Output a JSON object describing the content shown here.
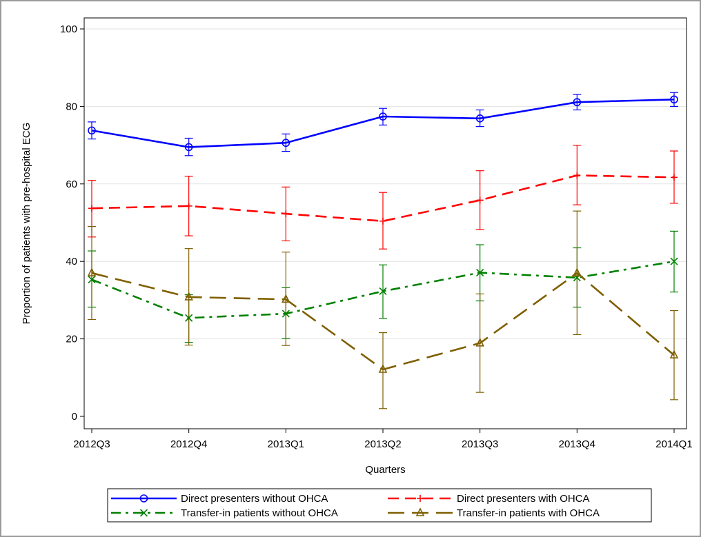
{
  "chart_data": {
    "type": "line",
    "xlabel": "Quarters",
    "ylabel": "Proportion of patients with pre-hospital ECG",
    "categories": [
      "2012Q3",
      "2012Q4",
      "2013Q1",
      "2013Q2",
      "2013Q3",
      "2013Q4",
      "2014Q1"
    ],
    "ylim": [
      0,
      100
    ],
    "yticks": [
      0,
      20,
      40,
      60,
      80,
      100
    ],
    "grid": "horizontal",
    "legend_position": "bottom",
    "series": [
      {
        "name": "Direct presenters without OHCA",
        "color": "#0000ff",
        "marker": "circle",
        "dash": "solid",
        "values": [
          73.8,
          69.5,
          70.6,
          77.4,
          76.9,
          81.1,
          81.8
        ],
        "lower": [
          71.6,
          67.3,
          68.4,
          75.2,
          74.8,
          79.1,
          80.0
        ],
        "upper": [
          76.0,
          71.8,
          72.9,
          79.5,
          79.1,
          83.1,
          83.6
        ]
      },
      {
        "name": "Direct presenters with OHCA",
        "color": "#ff0000",
        "marker": "plus",
        "dash": "dash",
        "values": [
          53.7,
          54.3,
          52.3,
          50.4,
          55.8,
          62.2,
          61.7
        ],
        "lower": [
          46.3,
          46.6,
          45.3,
          43.2,
          48.2,
          54.6,
          55.0
        ],
        "upper": [
          60.9,
          62.0,
          59.2,
          57.8,
          63.4,
          70.0,
          68.5
        ]
      },
      {
        "name": "Transfer-in patients without OHCA",
        "color": "#008000",
        "marker": "x",
        "dash": "dashdot",
        "values": [
          35.3,
          25.4,
          26.5,
          32.3,
          37.1,
          35.8,
          40.0
        ],
        "lower": [
          28.2,
          19.1,
          20.1,
          25.3,
          29.8,
          28.2,
          32.1
        ],
        "upper": [
          42.7,
          31.4,
          33.2,
          39.1,
          44.3,
          43.5,
          47.8
        ]
      },
      {
        "name": "Transfer-in patients with OHCA",
        "color": "#7f5f00",
        "marker": "triangle",
        "dash": "longdash",
        "values": [
          37.0,
          30.8,
          30.2,
          12.1,
          18.9,
          37.0,
          15.8
        ],
        "lower": [
          25.0,
          18.4,
          18.3,
          2.0,
          6.2,
          21.1,
          4.3
        ],
        "upper": [
          49.0,
          43.3,
          42.4,
          21.6,
          31.6,
          53.0,
          27.3
        ]
      }
    ]
  }
}
